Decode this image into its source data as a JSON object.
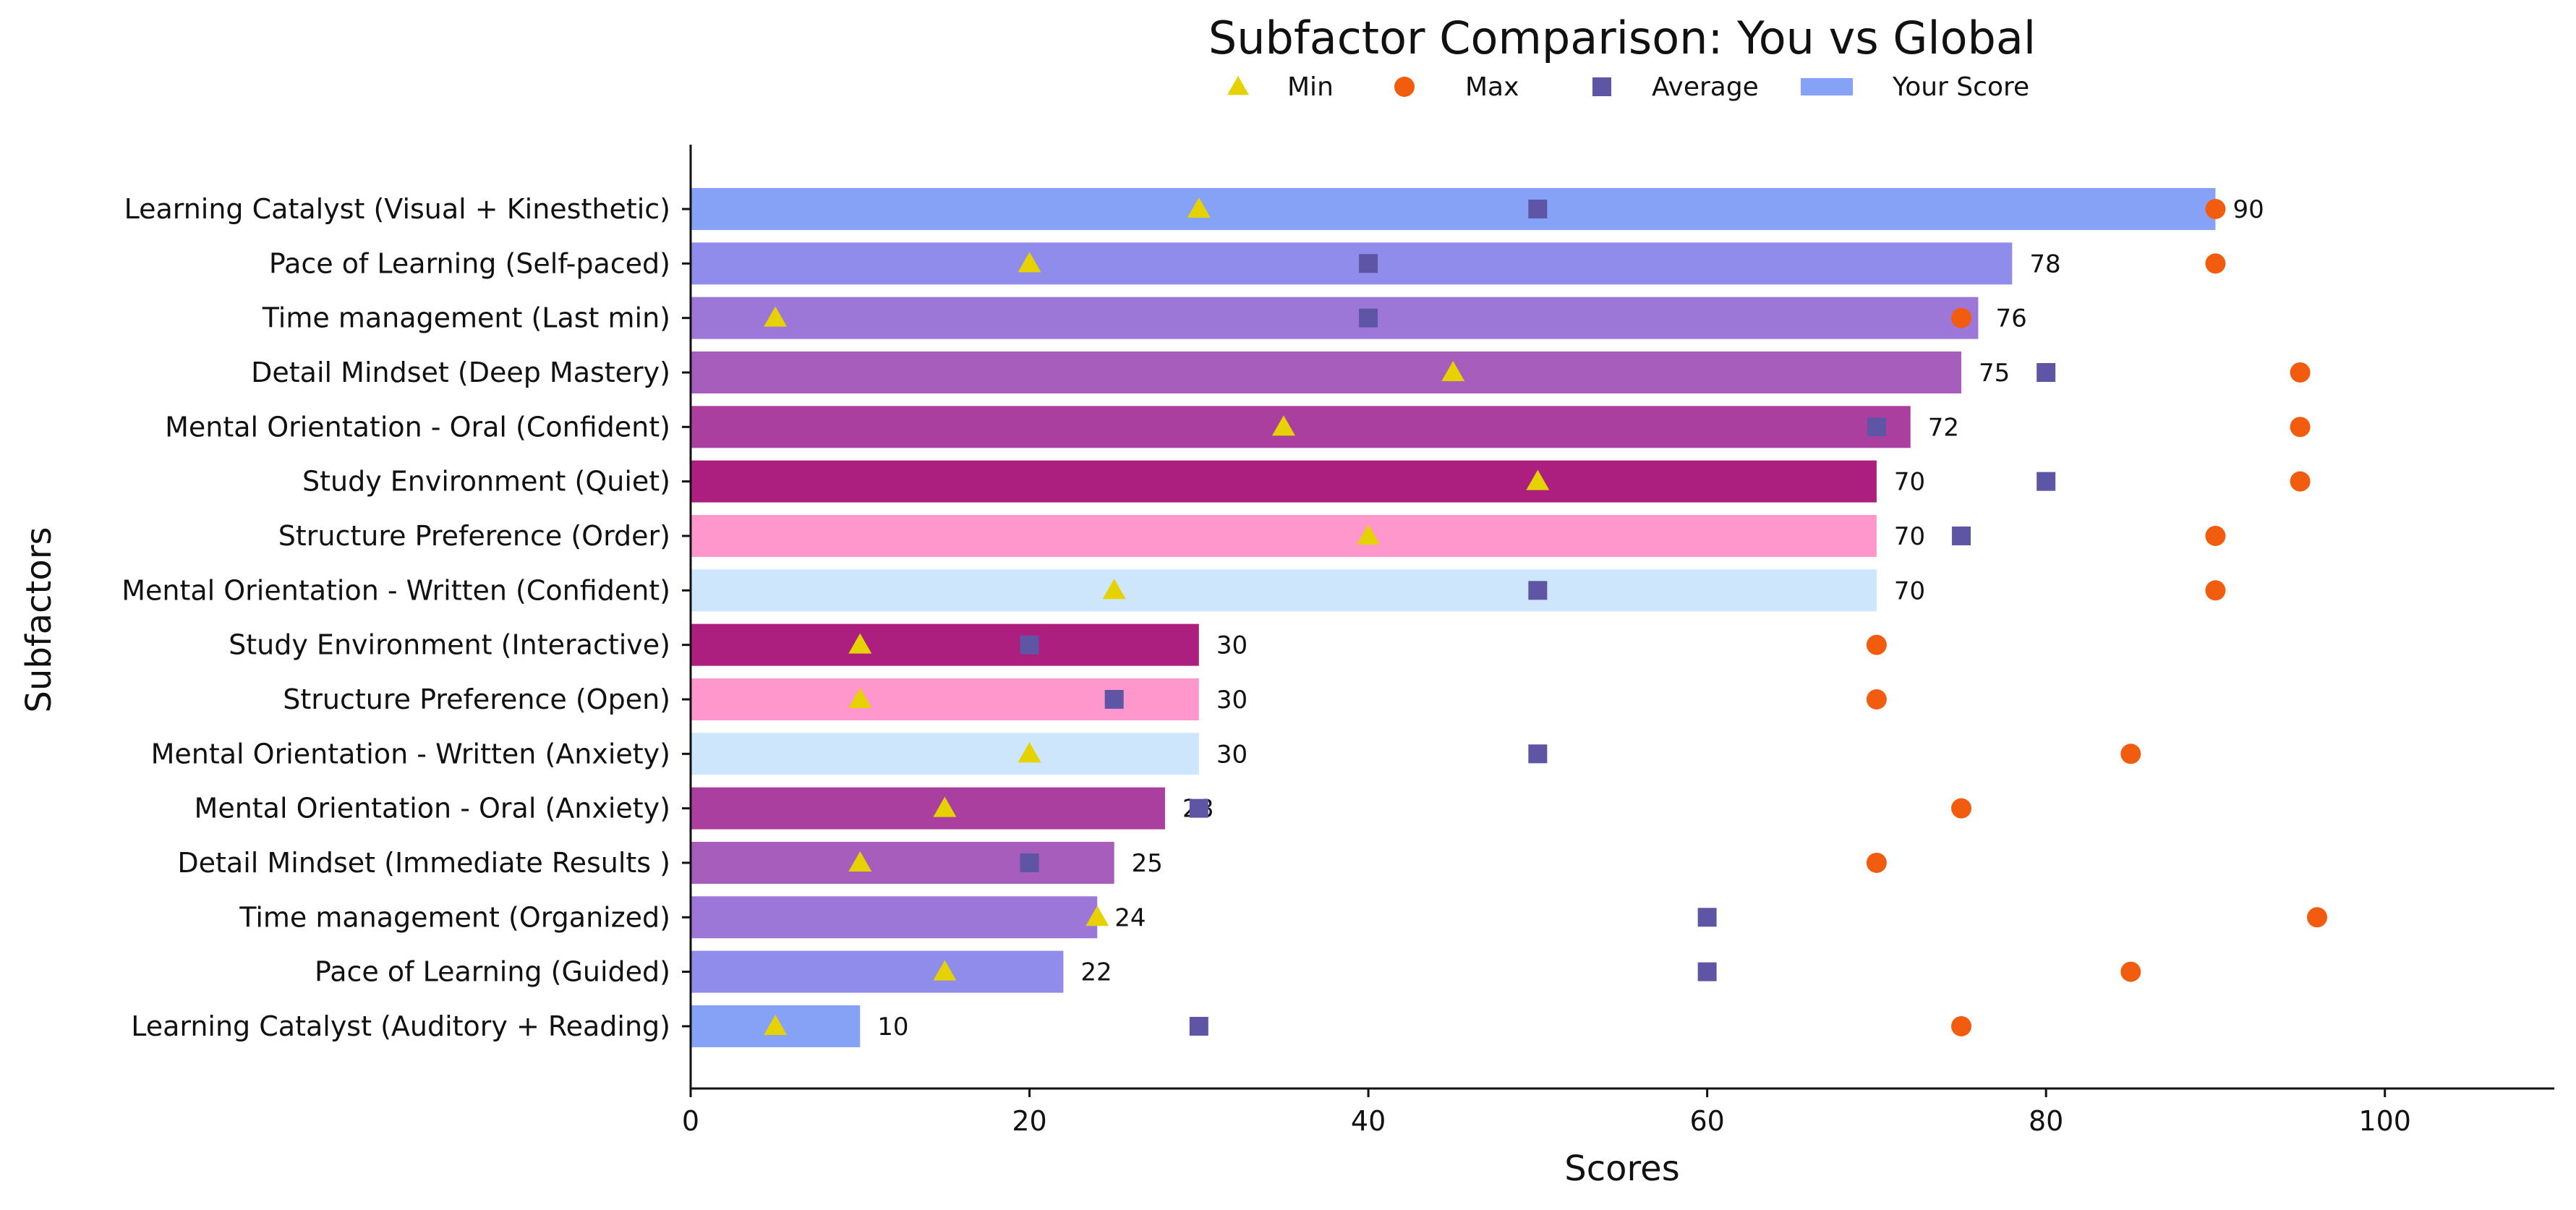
{
  "chart_data": {
    "type": "bar",
    "orientation": "horizontal",
    "title": "Subfactor Comparison: You vs Global",
    "xlabel": "Scores",
    "ylabel": "Subfactors",
    "xlim": [
      0,
      110
    ],
    "xticks": [
      0,
      20,
      40,
      60,
      80,
      100
    ],
    "grid": false,
    "legend_position": "top-center",
    "legend": [
      {
        "label": "Min",
        "marker": "triangle",
        "color": "#E6D200"
      },
      {
        "label": "Max",
        "marker": "circle",
        "color": "#F25C0F"
      },
      {
        "label": "Average",
        "marker": "square",
        "color": "#5F55A5"
      },
      {
        "label": "Your Score",
        "marker": "bar",
        "color": "#85A2F7"
      }
    ],
    "categories": [
      "Learning Catalyst (Visual + Kinesthetic)",
      "Pace of Learning (Self-paced)",
      "Time management (Last min)",
      "Detail Mindset (Deep Mastery)",
      "Mental Orientation - Oral (Confident)",
      "Study Environment (Quiet)",
      "Structure Preference (Order)",
      "Mental Orientation - Written (Confident)",
      "Study Environment (Interactive)",
      "Structure Preference (Open)",
      "Mental Orientation - Written (Anxiety)",
      "Mental Orientation - Oral (Anxiety)",
      "Detail Mindset (Immediate Results )",
      "Time management (Organized)",
      "Pace of Learning (Guided)",
      "Learning Catalyst (Auditory + Reading)"
    ],
    "series": [
      {
        "name": "Your Score",
        "values": [
          90,
          78,
          76,
          75,
          72,
          70,
          70,
          70,
          30,
          30,
          30,
          28,
          25,
          24,
          22,
          10
        ]
      },
      {
        "name": "Min",
        "values": [
          30,
          20,
          5,
          45,
          35,
          50,
          40,
          25,
          10,
          10,
          20,
          15,
          10,
          24,
          15,
          5
        ]
      },
      {
        "name": "Max",
        "values": [
          90,
          90,
          75,
          95,
          95,
          95,
          90,
          90,
          70,
          70,
          85,
          75,
          70,
          96,
          85,
          75
        ]
      },
      {
        "name": "Average",
        "values": [
          50,
          40,
          40,
          80,
          70,
          80,
          75,
          50,
          20,
          25,
          50,
          30,
          20,
          60,
          60,
          30
        ]
      }
    ],
    "bar_colors": [
      "#85A2F7",
      "#908CEB",
      "#9C77D8",
      "#A65DBC",
      "#AB3F9F",
      "#AD1F7E",
      "#FF96CC",
      "#CDE6FC",
      "#AD1F7E",
      "#FF96CC",
      "#CDE6FC",
      "#AB3F9F",
      "#A65DBC",
      "#9C77D8",
      "#908CEB",
      "#85A2F7"
    ]
  }
}
